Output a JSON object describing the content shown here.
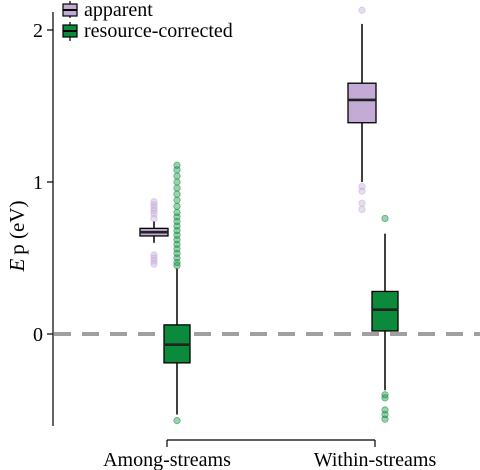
{
  "chart_data": {
    "type": "box",
    "ylabel_symbol": "E",
    "ylabel_rest": "p (eV)",
    "categories": [
      "Among-streams",
      "Within-streams"
    ],
    "y_ticks": [
      0,
      1,
      2
    ],
    "ylim": [
      -0.62,
      2.12
    ],
    "reference_line": {
      "y": 0,
      "style": "dashed",
      "color": "#a0a0a0"
    },
    "legend": {
      "position": "top-left"
    },
    "series": [
      {
        "name": "apparent",
        "color": "#c3abd6",
        "boxes": [
          {
            "category": "Among-streams",
            "whisker_low": 0.6,
            "q1": 0.645,
            "median": 0.67,
            "q3": 0.695,
            "whisker_high": 0.74,
            "outliers": [
              0.52,
              0.5,
              0.48,
              0.46,
              0.76,
              0.79,
              0.81,
              0.83,
              0.85,
              0.87
            ]
          },
          {
            "category": "Within-streams",
            "whisker_low": 1.0,
            "q1": 1.39,
            "median": 1.54,
            "q3": 1.65,
            "whisker_high": 2.04,
            "outliers": [
              0.97,
              0.94,
              0.86,
              0.82,
              2.13
            ]
          }
        ]
      },
      {
        "name": "resource-corrected",
        "color": "#0a8a3a",
        "boxes": [
          {
            "category": "Among-streams",
            "whisker_low": -0.53,
            "q1": -0.19,
            "median": -0.07,
            "q3": 0.06,
            "whisker_high": 0.43,
            "outliers": [
              -0.57,
              0.45,
              0.47,
              0.5,
              0.53,
              0.56,
              0.59,
              0.62,
              0.65,
              0.68,
              0.71,
              0.74,
              0.77,
              0.8,
              0.84,
              0.88,
              0.92,
              0.96,
              1.0,
              1.04,
              1.08,
              1.11
            ]
          },
          {
            "category": "Within-streams",
            "whisker_low": -0.37,
            "q1": 0.02,
            "median": 0.16,
            "q3": 0.28,
            "whisker_high": 0.66,
            "outliers": [
              -0.4,
              -0.42,
              -0.5,
              -0.53,
              -0.56,
              0.76
            ]
          }
        ]
      }
    ]
  }
}
